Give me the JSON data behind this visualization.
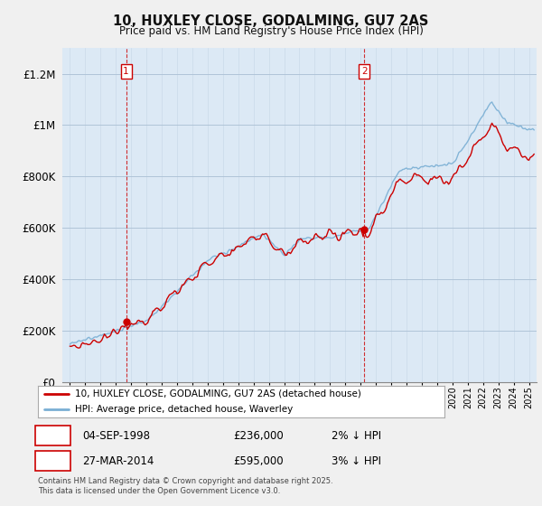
{
  "title": "10, HUXLEY CLOSE, GODALMING, GU7 2AS",
  "subtitle": "Price paid vs. HM Land Registry's House Price Index (HPI)",
  "footer": "Contains HM Land Registry data © Crown copyright and database right 2025.\nThis data is licensed under the Open Government Licence v3.0.",
  "legend_line1": "10, HUXLEY CLOSE, GODALMING, GU7 2AS (detached house)",
  "legend_line2": "HPI: Average price, detached house, Waverley",
  "sale1_label": "1",
  "sale1_date": "04-SEP-1998",
  "sale1_price": "£236,000",
  "sale1_note": "2% ↓ HPI",
  "sale2_label": "2",
  "sale2_date": "27-MAR-2014",
  "sale2_price": "£595,000",
  "sale2_note": "3% ↓ HPI",
  "sale1_x": 1998.67,
  "sale1_y": 236000,
  "sale2_x": 2014.23,
  "sale2_y": 595000,
  "ylim": [
    0,
    1300000
  ],
  "xlim": [
    1994.5,
    2025.5
  ],
  "yticks": [
    0,
    200000,
    400000,
    600000,
    800000,
    1000000,
    1200000
  ],
  "ytick_labels": [
    "£0",
    "£200K",
    "£400K",
    "£600K",
    "£800K",
    "£1M",
    "£1.2M"
  ],
  "red_line_color": "#cc0000",
  "blue_line_color": "#7aafd4",
  "plot_bg_color": "#dce9f5",
  "background_color": "#f0f0f0",
  "grid_color": "#b0c4d8",
  "vline_color": "#cc0000",
  "annotation_bg": "#ffffff"
}
